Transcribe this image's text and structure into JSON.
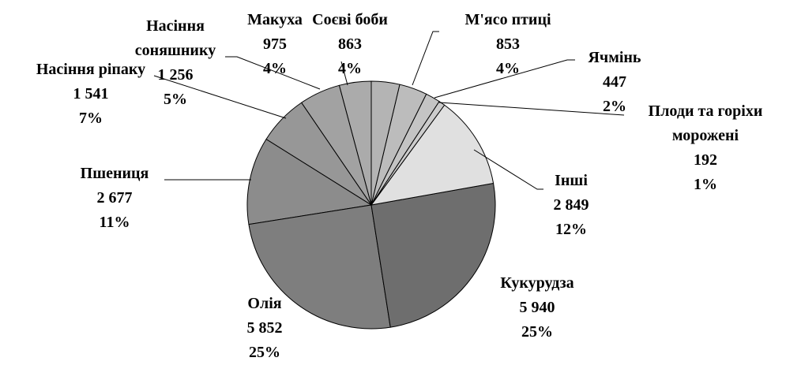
{
  "chart_data": {
    "type": "pie",
    "categories": [
      "Соєві боби",
      "М'ясо птиці",
      "Ячмінь",
      "Плоди та горіхи морожені",
      "Інші",
      "Кукурудза",
      "Олія",
      "Пшениця",
      "Насіння ріпаку",
      "Насіння соняшнику",
      "Макуха"
    ],
    "values": [
      863,
      853,
      447,
      192,
      2849,
      5940,
      5852,
      2677,
      1541,
      1256,
      975
    ],
    "value_labels": [
      "863",
      "853",
      "447",
      "192",
      "2 849",
      "5 940",
      "5 852",
      "2 677",
      "1 541",
      "1 256",
      "975"
    ],
    "percents": [
      4,
      4,
      2,
      1,
      12,
      25,
      25,
      11,
      7,
      5,
      4
    ],
    "percent_labels": [
      "4%",
      "4%",
      "2%",
      "1%",
      "12%",
      "25%",
      "25%",
      "11%",
      "7%",
      "5%",
      "4%"
    ],
    "colors": [
      "#b4b4b4",
      "#bcbcbc",
      "#c4c4c4",
      "#cccccc",
      "#e0e0e0",
      "#6e6e6e",
      "#7e7e7e",
      "#8c8c8c",
      "#979797",
      "#a2a2a2",
      "#ababab"
    ]
  }
}
